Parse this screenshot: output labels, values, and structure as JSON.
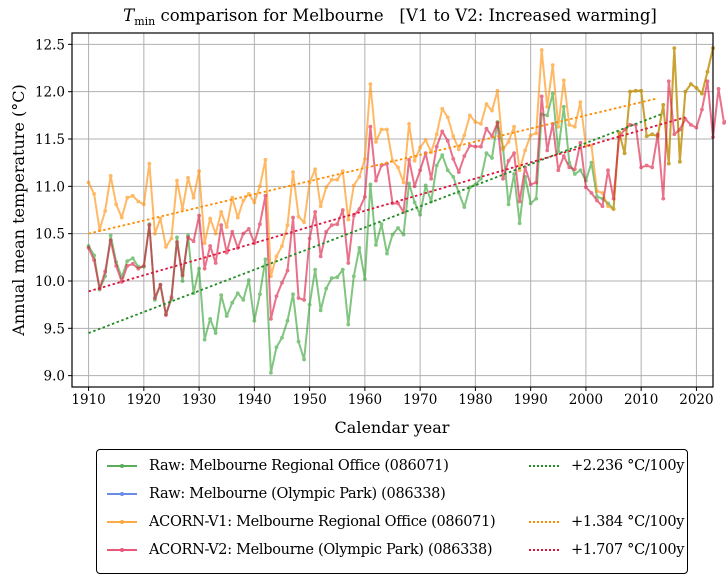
{
  "chart_data": {
    "type": "line",
    "title": "T_min comparison for Melbourne   [V1 to V2: Increased warming]",
    "title_parts": {
      "symbol": "T",
      "subscript": "min",
      "rest": " comparison for Melbourne   [V1 to V2: Increased warming]"
    },
    "xlabel": "Calendar year",
    "ylabel": "Annual mean temperature (°C)",
    "xlim": [
      1907,
      2023
    ],
    "ylim": [
      8.88,
      12.62
    ],
    "grid": true,
    "legend_placement": "below-center",
    "xticks": [
      1910,
      1920,
      1930,
      1940,
      1950,
      1960,
      1970,
      1980,
      1990,
      2000,
      2010,
      2020
    ],
    "yticks": [
      9.0,
      9.5,
      10.0,
      10.5,
      11.0,
      11.5,
      12.0,
      12.5
    ],
    "ytick_labels": [
      "9.0",
      "9.5",
      "10.0",
      "10.5",
      "11.0",
      "11.5",
      "12.0",
      "12.5"
    ],
    "series": [
      {
        "name": "Raw: Melbourne Regional Office (086071)",
        "color": "#2ca02c",
        "start_year": 1910,
        "values": [
          10.37,
          10.27,
          9.91,
          10.05,
          10.48,
          10.2,
          10.04,
          10.21,
          10.24,
          10.15,
          10.15,
          10.6,
          9.8,
          9.96,
          9.65,
          9.81,
          10.46,
          10.0,
          10.48,
          9.87,
          10.13,
          9.38,
          9.6,
          9.45,
          9.85,
          9.63,
          9.77,
          9.87,
          9.8,
          10.01,
          9.58,
          9.86,
          10.23,
          9.03,
          9.3,
          9.4,
          9.58,
          9.86,
          9.36,
          9.17,
          9.75,
          10.12,
          9.69,
          9.92,
          10.03,
          10.04,
          10.12,
          9.54,
          10.05,
          10.35,
          10.02,
          11.02,
          10.38,
          10.6,
          10.29,
          10.49,
          10.56,
          10.49,
          11.03,
          10.83,
          10.7,
          11.01,
          10.84,
          11.22,
          11.33,
          11.17,
          11.1,
          10.93,
          10.78,
          10.99,
          11.02,
          11.08,
          11.35,
          11.3,
          11.68,
          11.41,
          10.81,
          11.13,
          10.61,
          11.1,
          10.82,
          10.87,
          11.76,
          11.75,
          11.98,
          11.37,
          11.84,
          11.25,
          11.13,
          11.17,
          11.06,
          11.25,
          10.89,
          10.87,
          10.82,
          10.76,
          11.57,
          11.35,
          12.0,
          12.01,
          12.01,
          11.53,
          11.55,
          11.53,
          11.86,
          11.24,
          12.46,
          11.26,
          12.0,
          12.08,
          12.04,
          11.98,
          12.21,
          12.46
        ],
        "marker": "dot"
      },
      {
        "name": "Raw: Melbourne (Olympic Park) (086338)",
        "color": "#4169e1",
        "start_year": 2013,
        "values": [],
        "marker": "dot"
      },
      {
        "name": "ACORN-V1: Melbourne Regional Office (086071)",
        "color": "#ff8c00",
        "start_year": 1910,
        "values": [
          11.04,
          10.92,
          10.54,
          10.74,
          11.11,
          10.81,
          10.67,
          10.88,
          10.9,
          10.84,
          10.81,
          11.24,
          10.5,
          10.66,
          10.36,
          10.45,
          11.06,
          10.76,
          11.09,
          10.88,
          11.16,
          10.4,
          10.66,
          10.5,
          10.73,
          10.57,
          10.88,
          10.67,
          10.85,
          10.92,
          10.83,
          11.0,
          11.28,
          10.05,
          10.26,
          10.37,
          10.59,
          11.15,
          10.68,
          10.62,
          11.04,
          11.18,
          10.79,
          10.99,
          11.07,
          11.07,
          11.16,
          10.65,
          11.01,
          11.1,
          11.29,
          12.08,
          11.47,
          11.6,
          11.6,
          11.27,
          11.2,
          11.04,
          11.66,
          11.27,
          11.41,
          11.49,
          11.36,
          11.55,
          11.82,
          11.73,
          11.53,
          11.39,
          11.54,
          11.75,
          11.68,
          11.66,
          11.87,
          11.8,
          12.01,
          11.39,
          11.47,
          11.63,
          11.17,
          11.38,
          11.54,
          11.56,
          12.44,
          11.84,
          12.28,
          11.63,
          12.12,
          11.65,
          11.63,
          11.89,
          11.43,
          11.43,
          10.95,
          10.93,
          10.79,
          10.76,
          11.57,
          11.35,
          12.0,
          12.01,
          12.01,
          11.53,
          11.55,
          11.53,
          11.86,
          11.24,
          12.46,
          11.26,
          12.0,
          12.08,
          12.04,
          11.98,
          12.21,
          12.46
        ],
        "marker": "dot"
      },
      {
        "name": "ACORN-V2: Melbourne (Olympic Park) (086338)",
        "color": "#dc143c",
        "start_year": 1910,
        "values": [
          10.35,
          10.22,
          9.92,
          10.1,
          10.43,
          10.16,
          9.99,
          10.16,
          10.18,
          10.13,
          10.16,
          10.59,
          9.82,
          9.96,
          9.64,
          9.83,
          10.41,
          10.06,
          10.46,
          10.42,
          10.69,
          10.13,
          10.37,
          10.19,
          10.59,
          10.3,
          10.52,
          10.35,
          10.5,
          10.55,
          10.4,
          10.6,
          10.9,
          9.6,
          9.84,
          9.98,
          10.11,
          10.67,
          9.82,
          9.8,
          10.45,
          10.73,
          10.26,
          10.52,
          10.59,
          10.6,
          10.75,
          10.19,
          10.69,
          10.76,
          10.89,
          11.63,
          11.06,
          11.22,
          11.24,
          10.82,
          10.82,
          10.73,
          11.28,
          11.0,
          11.17,
          11.35,
          11.08,
          11.42,
          11.58,
          11.48,
          11.29,
          11.15,
          11.32,
          11.43,
          11.42,
          11.42,
          11.61,
          11.53,
          11.67,
          11.08,
          11.27,
          11.35,
          10.84,
          11.2,
          11.02,
          11.04,
          11.95,
          11.38,
          11.66,
          11.17,
          11.32,
          11.2,
          11.18,
          11.46,
          10.99,
          10.93,
          10.85,
          10.79,
          11.17,
          10.87,
          11.52,
          11.6,
          11.65,
          11.65,
          11.2,
          11.22,
          11.2,
          11.55,
          10.87,
          12.11,
          11.55,
          11.6,
          11.71,
          11.65,
          11.62,
          11.81,
          12.11,
          11.52,
          12.03,
          11.67,
          11.73
        ]
      }
    ],
    "trend_lines": [
      {
        "label": "+2.236 °C/100y",
        "color": "#228b22",
        "x": [
          1910,
          2014
        ],
        "y": [
          9.45,
          11.77
        ]
      },
      {
        "label": "+1.384 °C/100y",
        "color": "#ff8c00",
        "x": [
          1910,
          2013
        ],
        "y": [
          10.5,
          11.93
        ]
      },
      {
        "label": "+1.707 °C/100y",
        "color": "#dc143c",
        "x": [
          1910,
          2018
        ],
        "y": [
          9.89,
          11.73
        ]
      }
    ]
  },
  "legend": {
    "entries": [
      {
        "label": "Raw: Melbourne Regional Office (086071)",
        "color": "#5aac5a"
      },
      {
        "label": "Raw: Melbourne (Olympic Park) (086338)",
        "color": "#6b8be8"
      },
      {
        "label": "ACORN-V1: Melbourne Regional Office (086071)",
        "color": "#ffaa44"
      },
      {
        "label": "ACORN-V2: Melbourne (Olympic Park) (086338)",
        "color": "#e8577a"
      }
    ],
    "trend_entries": [
      {
        "label": "+2.236 °C/100y",
        "color": "#228b22",
        "row": 0
      },
      {
        "label": "+1.384 °C/100y",
        "color": "#ff8c00",
        "row": 2
      },
      {
        "label": "+1.707 °C/100y",
        "color": "#dc143c",
        "row": 3
      }
    ]
  }
}
